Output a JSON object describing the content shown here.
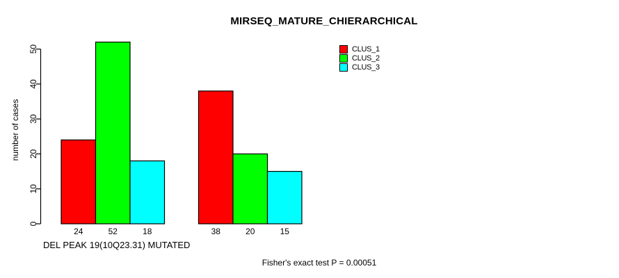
{
  "chart_data": {
    "type": "bar",
    "title": "MIRSEQ_MATURE_CHIERARCHICAL",
    "ylabel": "number of cases",
    "xlabel": "DEL PEAK 19(10Q23.31) MUTATED",
    "ylim": [
      0,
      50
    ],
    "yticks": [
      0,
      10,
      20,
      30,
      40,
      50
    ],
    "grid": false,
    "legend_position": "top-right",
    "categories": [
      "DEL PEAK 19(10Q23.31) MUTATED",
      ""
    ],
    "series": [
      {
        "name": "CLUS_1",
        "color": "#ff0000",
        "values": [
          24,
          38
        ]
      },
      {
        "name": "CLUS_2",
        "color": "#00ff00",
        "values": [
          52,
          20
        ]
      },
      {
        "name": "CLUS_3",
        "color": "#00ffff",
        "values": [
          18,
          15
        ]
      }
    ],
    "annotation": "Fisher's exact test P = 0.00051",
    "bar_outline_color": "#000000"
  }
}
